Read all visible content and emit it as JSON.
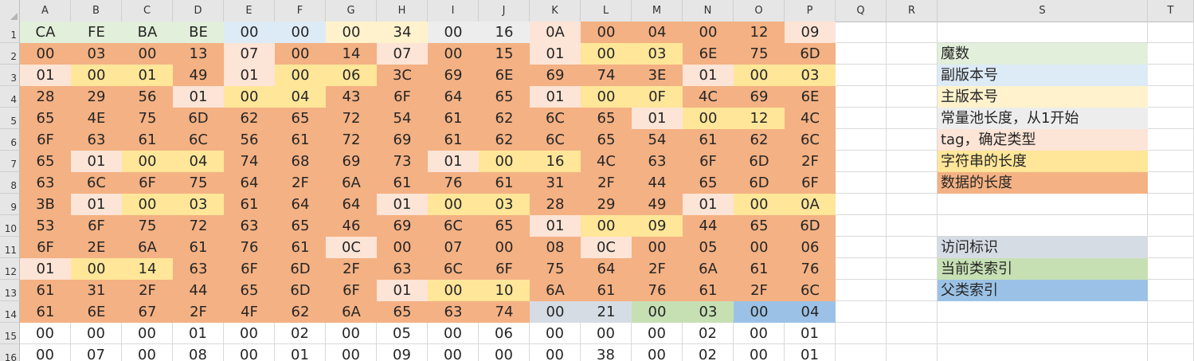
{
  "sheet": {
    "columns": [
      "A",
      "B",
      "C",
      "D",
      "E",
      "F",
      "G",
      "H",
      "I",
      "J",
      "K",
      "L",
      "M",
      "N",
      "O",
      "P",
      "Q",
      "R",
      "S",
      "T"
    ],
    "row_numbers": [
      "1",
      "2",
      "3",
      "4",
      "5",
      "6",
      "7",
      "8",
      "9",
      "10",
      "11",
      "12",
      "13",
      "14",
      "15",
      "16"
    ],
    "colors": {
      "magic": "#e2efda",
      "minor": "#ddebf7",
      "major": "#fff2cc",
      "cpcount": "#ededed",
      "tag": "#fce4d6",
      "strlen": "#ffe699",
      "data": "#f4b183",
      "access": "#d6dce4",
      "this": "#c6e0b4",
      "super": "#9bc2e6",
      "none": "#ffffff"
    },
    "hex_rows": [
      [
        "CA",
        "FE",
        "BA",
        "BE",
        "00",
        "00",
        "00",
        "34",
        "00",
        "16",
        "0A",
        "00",
        "04",
        "00",
        "12",
        "09"
      ],
      [
        "00",
        "03",
        "00",
        "13",
        "07",
        "00",
        "14",
        "07",
        "00",
        "15",
        "01",
        "00",
        "03",
        "6E",
        "75",
        "6D"
      ],
      [
        "01",
        "00",
        "01",
        "49",
        "01",
        "00",
        "06",
        "3C",
        "69",
        "6E",
        "69",
        "74",
        "3E",
        "01",
        "00",
        "03"
      ],
      [
        "28",
        "29",
        "56",
        "01",
        "00",
        "04",
        "43",
        "6F",
        "64",
        "65",
        "01",
        "00",
        "0F",
        "4C",
        "69",
        "6E"
      ],
      [
        "65",
        "4E",
        "75",
        "6D",
        "62",
        "65",
        "72",
        "54",
        "61",
        "62",
        "6C",
        "65",
        "01",
        "00",
        "12",
        "4C"
      ],
      [
        "6F",
        "63",
        "61",
        "6C",
        "56",
        "61",
        "72",
        "69",
        "61",
        "62",
        "6C",
        "65",
        "54",
        "61",
        "62",
        "6C"
      ],
      [
        "65",
        "01",
        "00",
        "04",
        "74",
        "68",
        "69",
        "73",
        "01",
        "00",
        "16",
        "4C",
        "63",
        "6F",
        "6D",
        "2F"
      ],
      [
        "63",
        "6C",
        "6F",
        "75",
        "64",
        "2F",
        "6A",
        "61",
        "76",
        "61",
        "31",
        "2F",
        "44",
        "65",
        "6D",
        "6F"
      ],
      [
        "3B",
        "01",
        "00",
        "03",
        "61",
        "64",
        "64",
        "01",
        "00",
        "03",
        "28",
        "29",
        "49",
        "01",
        "00",
        "0A"
      ],
      [
        "53",
        "6F",
        "75",
        "72",
        "63",
        "65",
        "46",
        "69",
        "6C",
        "65",
        "01",
        "00",
        "09",
        "44",
        "65",
        "6D"
      ],
      [
        "6F",
        "2E",
        "6A",
        "61",
        "76",
        "61",
        "0C",
        "00",
        "07",
        "00",
        "08",
        "0C",
        "00",
        "05",
        "00",
        "06"
      ],
      [
        "01",
        "00",
        "14",
        "63",
        "6F",
        "6D",
        "2F",
        "63",
        "6C",
        "6F",
        "75",
        "64",
        "2F",
        "6A",
        "61",
        "76"
      ],
      [
        "61",
        "31",
        "2F",
        "44",
        "65",
        "6D",
        "6F",
        "01",
        "00",
        "10",
        "6A",
        "61",
        "76",
        "61",
        "2F",
        "6C"
      ],
      [
        "61",
        "6E",
        "67",
        "2F",
        "4F",
        "62",
        "6A",
        "65",
        "63",
        "74",
        "00",
        "21",
        "00",
        "03",
        "00",
        "04"
      ],
      [
        "00",
        "00",
        "00",
        "01",
        "00",
        "02",
        "00",
        "05",
        "00",
        "06",
        "00",
        "00",
        "00",
        "02",
        "00",
        "01"
      ],
      [
        "00",
        "07",
        "00",
        "08",
        "00",
        "01",
        "00",
        "09",
        "00",
        "00",
        "00",
        "38",
        "00",
        "02",
        "00",
        "01"
      ]
    ],
    "cell_colors": [
      [
        "magic",
        "magic",
        "magic",
        "magic",
        "minor",
        "minor",
        "major",
        "major",
        "cpcount",
        "cpcount",
        "tag",
        "data",
        "data",
        "data",
        "data",
        "tag"
      ],
      [
        "data",
        "data",
        "data",
        "data",
        "tag",
        "data",
        "data",
        "tag",
        "data",
        "data",
        "tag",
        "strlen",
        "strlen",
        "data",
        "data",
        "data"
      ],
      [
        "tag",
        "strlen",
        "strlen",
        "data",
        "tag",
        "strlen",
        "strlen",
        "data",
        "data",
        "data",
        "data",
        "data",
        "data",
        "tag",
        "strlen",
        "strlen"
      ],
      [
        "data",
        "data",
        "data",
        "tag",
        "strlen",
        "strlen",
        "data",
        "data",
        "data",
        "data",
        "tag",
        "strlen",
        "strlen",
        "data",
        "data",
        "data"
      ],
      [
        "data",
        "data",
        "data",
        "data",
        "data",
        "data",
        "data",
        "data",
        "data",
        "data",
        "data",
        "data",
        "tag",
        "strlen",
        "strlen",
        "data"
      ],
      [
        "data",
        "data",
        "data",
        "data",
        "data",
        "data",
        "data",
        "data",
        "data",
        "data",
        "data",
        "data",
        "data",
        "data",
        "data",
        "data"
      ],
      [
        "data",
        "tag",
        "strlen",
        "strlen",
        "data",
        "data",
        "data",
        "data",
        "tag",
        "strlen",
        "strlen",
        "data",
        "data",
        "data",
        "data",
        "data"
      ],
      [
        "data",
        "data",
        "data",
        "data",
        "data",
        "data",
        "data",
        "data",
        "data",
        "data",
        "data",
        "data",
        "data",
        "data",
        "data",
        "data"
      ],
      [
        "data",
        "tag",
        "strlen",
        "strlen",
        "data",
        "data",
        "data",
        "tag",
        "strlen",
        "strlen",
        "data",
        "data",
        "data",
        "tag",
        "strlen",
        "strlen"
      ],
      [
        "data",
        "data",
        "data",
        "data",
        "data",
        "data",
        "data",
        "data",
        "data",
        "data",
        "tag",
        "strlen",
        "strlen",
        "data",
        "data",
        "data"
      ],
      [
        "data",
        "data",
        "data",
        "data",
        "data",
        "data",
        "tag",
        "data",
        "data",
        "data",
        "data",
        "tag",
        "data",
        "data",
        "data",
        "data"
      ],
      [
        "tag",
        "strlen",
        "strlen",
        "data",
        "data",
        "data",
        "data",
        "data",
        "data",
        "data",
        "data",
        "data",
        "data",
        "data",
        "data",
        "data"
      ],
      [
        "data",
        "data",
        "data",
        "data",
        "data",
        "data",
        "data",
        "tag",
        "strlen",
        "strlen",
        "data",
        "data",
        "data",
        "data",
        "data",
        "data"
      ],
      [
        "data",
        "data",
        "data",
        "data",
        "data",
        "data",
        "data",
        "data",
        "data",
        "data",
        "access",
        "access",
        "this",
        "this",
        "super",
        "super"
      ],
      [
        "none",
        "none",
        "none",
        "none",
        "none",
        "none",
        "none",
        "none",
        "none",
        "none",
        "none",
        "none",
        "none",
        "none",
        "none",
        "none"
      ],
      [
        "none",
        "none",
        "none",
        "none",
        "none",
        "none",
        "none",
        "none",
        "none",
        "none",
        "none",
        "none",
        "none",
        "none",
        "none",
        "none"
      ]
    ],
    "legend": [
      {
        "row": 2,
        "label": "魔数",
        "color": "magic"
      },
      {
        "row": 3,
        "label": "副版本号",
        "color": "minor"
      },
      {
        "row": 4,
        "label": "主版本号",
        "color": "major"
      },
      {
        "row": 5,
        "label": "常量池长度，从1开始",
        "color": "cpcount"
      },
      {
        "row": 6,
        "label": "tag，确定类型",
        "color": "tag"
      },
      {
        "row": 7,
        "label": "字符串的长度",
        "color": "strlen"
      },
      {
        "row": 8,
        "label": "数据的长度",
        "color": "data"
      },
      {
        "row": 11,
        "label": "访问标识",
        "color": "access"
      },
      {
        "row": 12,
        "label": "当前类索引",
        "color": "this"
      },
      {
        "row": 13,
        "label": "父类索引",
        "color": "super"
      }
    ]
  }
}
